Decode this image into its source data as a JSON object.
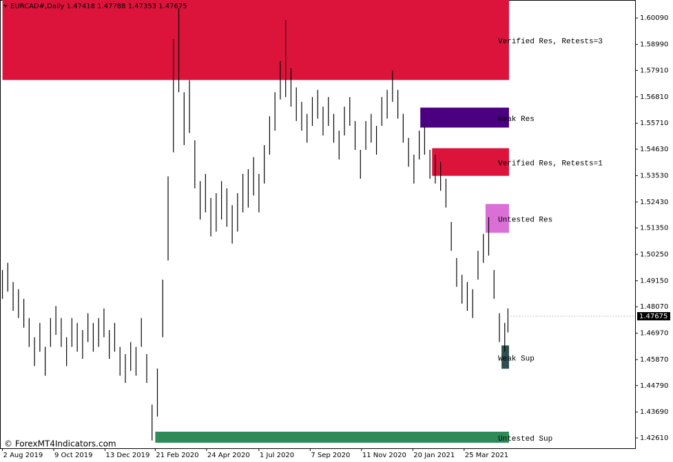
{
  "chart_data": {
    "type": "ohlc",
    "title": "EURCAD#,Daily  1.47418 1.47788 1.47353 1.47675",
    "watermark": "© ForexMT4Indicators.com",
    "color": "#000000",
    "x": [
      0,
      5,
      10,
      15,
      20,
      25,
      30,
      35,
      40,
      45,
      50,
      55,
      60,
      65,
      70,
      75,
      80,
      85,
      90,
      95,
      100,
      105,
      110,
      115,
      120,
      125,
      130,
      135,
      140,
      145,
      150,
      155,
      160,
      165,
      170,
      175,
      180,
      185,
      190,
      195,
      200,
      205,
      210,
      215,
      220,
      225,
      230,
      235,
      240,
      245,
      250,
      255,
      260,
      265,
      270,
      275,
      280,
      285,
      290,
      295,
      300,
      305,
      310,
      315,
      320,
      325,
      330,
      335,
      340,
      345,
      350,
      355,
      360,
      365,
      370,
      375,
      380,
      385,
      390,
      395,
      400,
      405,
      410,
      415,
      420,
      425,
      430,
      435,
      440,
      445,
      450,
      455,
      460,
      465,
      470,
      473
    ],
    "high": [
      1.496,
      1.499,
      1.491,
      1.488,
      1.484,
      1.476,
      1.468,
      1.474,
      1.464,
      1.476,
      1.481,
      1.476,
      1.468,
      1.476,
      1.474,
      1.471,
      1.478,
      1.474,
      1.476,
      1.48,
      1.471,
      1.474,
      1.464,
      1.461,
      1.466,
      1.464,
      1.476,
      1.461,
      1.44,
      1.455,
      1.492,
      1.535,
      1.592,
      1.605,
      1.57,
      1.575,
      1.55,
      1.533,
      1.536,
      1.526,
      1.528,
      1.533,
      1.53,
      1.523,
      1.528,
      1.536,
      1.538,
      1.543,
      1.536,
      1.548,
      1.56,
      1.57,
      1.583,
      1.6,
      1.58,
      1.572,
      1.566,
      1.561,
      1.568,
      1.571,
      1.564,
      1.568,
      1.561,
      1.554,
      1.564,
      1.568,
      1.558,
      1.546,
      1.558,
      1.561,
      1.556,
      1.568,
      1.571,
      1.579,
      1.571,
      1.561,
      1.551,
      1.544,
      1.554,
      1.556,
      1.546,
      1.544,
      1.541,
      1.534,
      1.516,
      1.501,
      1.494,
      1.491,
      1.488,
      1.504,
      1.511,
      1.518,
      1.496,
      1.478,
      1.474,
      1.48
    ],
    "low": [
      1.484,
      1.487,
      1.479,
      1.476,
      1.472,
      1.464,
      1.456,
      1.462,
      1.452,
      1.464,
      1.469,
      1.464,
      1.456,
      1.464,
      1.462,
      1.459,
      1.466,
      1.462,
      1.464,
      1.468,
      1.459,
      1.462,
      1.452,
      1.449,
      1.454,
      1.452,
      1.464,
      1.449,
      1.425,
      1.435,
      1.468,
      1.5,
      1.545,
      1.57,
      1.548,
      1.553,
      1.53,
      1.517,
      1.52,
      1.51,
      1.512,
      1.517,
      1.514,
      1.507,
      1.512,
      1.52,
      1.522,
      1.527,
      1.52,
      1.532,
      1.544,
      1.554,
      1.567,
      1.568,
      1.564,
      1.558,
      1.554,
      1.549,
      1.556,
      1.559,
      1.552,
      1.556,
      1.549,
      1.542,
      1.552,
      1.556,
      1.546,
      1.534,
      1.546,
      1.549,
      1.544,
      1.556,
      1.559,
      1.566,
      1.559,
      1.549,
      1.539,
      1.532,
      1.542,
      1.544,
      1.534,
      1.532,
      1.529,
      1.522,
      1.504,
      1.489,
      1.482,
      1.479,
      1.476,
      1.492,
      1.499,
      1.502,
      1.484,
      1.466,
      1.462,
      1.47
    ],
    "last_price": 1.47675,
    "xlim": [
      -1,
      592
    ],
    "ylim": [
      1.4218,
      1.6084
    ],
    "xticks": [
      {
        "value": 0,
        "label": "2 Aug 2019"
      },
      {
        "value": 48,
        "label": "9 Oct 2019"
      },
      {
        "value": 96,
        "label": "13 Dec 2019"
      },
      {
        "value": 143,
        "label": "21 Feb 2020"
      },
      {
        "value": 191,
        "label": "24 Apr 2020"
      },
      {
        "value": 240,
        "label": "1 Jul 2020"
      },
      {
        "value": 288,
        "label": "7 Sep 2020"
      },
      {
        "value": 336,
        "label": "11 Nov 2020"
      },
      {
        "value": 384,
        "label": "20 Jan 2021"
      },
      {
        "value": 432,
        "label": "25 Mar 2021"
      }
    ],
    "yticks": [
      {
        "value": 1.6009,
        "label": "1.60090"
      },
      {
        "value": 1.5899,
        "label": "1.58990"
      },
      {
        "value": 1.5791,
        "label": "1.57910"
      },
      {
        "value": 1.5681,
        "label": "1.56810"
      },
      {
        "value": 1.5571,
        "label": "1.55710"
      },
      {
        "value": 1.5463,
        "label": "1.54630"
      },
      {
        "value": 1.5353,
        "label": "1.53530"
      },
      {
        "value": 1.5243,
        "label": "1.52430"
      },
      {
        "value": 1.5135,
        "label": "1.51350"
      },
      {
        "value": 1.5025,
        "label": "1.50250"
      },
      {
        "value": 1.4915,
        "label": "1.49150"
      },
      {
        "value": 1.4807,
        "label": "1.48070"
      },
      {
        "value": 1.4697,
        "label": "1.46970"
      },
      {
        "value": 1.4587,
        "label": "1.45870"
      },
      {
        "value": 1.4479,
        "label": "1.44790"
      },
      {
        "value": 1.4369,
        "label": "1.43690"
      },
      {
        "value": 1.4261,
        "label": "1.42610"
      }
    ],
    "zones": [
      {
        "name": "Verified Res, Retests=3",
        "color": "#dc143c",
        "low": 1.5751,
        "high": 1.6084,
        "start": 0,
        "end": 474
      },
      {
        "name": "Weak Res",
        "color": "#4b0082",
        "low": 1.5553,
        "high": 1.5636,
        "start": 391,
        "end": 474
      },
      {
        "name": "Verified Res, Retests=1",
        "color": "#dc143c",
        "low": 1.5352,
        "high": 1.5467,
        "start": 402,
        "end": 474
      },
      {
        "name": "Untested Res",
        "color": "#da70d6",
        "low": 1.5115,
        "high": 1.5235,
        "start": 452,
        "end": 474
      },
      {
        "name": "Weak Sup",
        "color": "#2f4f4f",
        "low": 1.4549,
        "high": 1.4646,
        "start": 467,
        "end": 474
      },
      {
        "name": "Untested Sup",
        "color": "#2e8b57",
        "low": 1.4241,
        "high": 1.4287,
        "start": 143,
        "end": 474
      }
    ]
  }
}
